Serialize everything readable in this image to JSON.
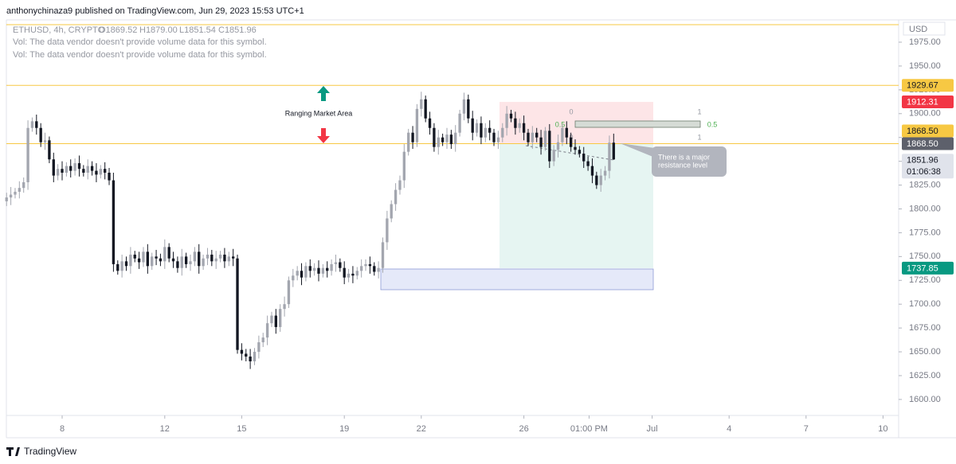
{
  "header": {
    "published": "anthonychinaza9 published on TradingView.com, Jun 29, 2023 15:53 UTC+1"
  },
  "footer": {
    "brand": "TradingView"
  },
  "chart_data": {
    "type": "candlestick",
    "symbol": "ETHUSD, 4h, CRYPTO",
    "ohlc_legend": [
      "O1869.52",
      "H1879.00",
      "L1851.54",
      "C1851.96"
    ],
    "notes": [
      "Vol: The data vendor doesn't provide volume data for this symbol.",
      "Vol: The data vendor doesn't provide volume data for this symbol."
    ],
    "currency": "USD",
    "countdown": "01:06:38",
    "up_color": "#a3a6af",
    "down_color": "#131722",
    "grid": false,
    "xlim": [
      5.826,
      40.609
    ],
    "ylim": [
      1583.2,
      1998.4
    ],
    "xticks": [
      8,
      12,
      15,
      19,
      22,
      26,
      {
        "value": 28.5417,
        "label": "01:00 PM"
      },
      {
        "value": 31,
        "label": "Jul"
      },
      {
        "value": 34,
        "label": "4"
      },
      {
        "value": 37,
        "label": "7"
      },
      {
        "value": 40,
        "label": "10"
      }
    ],
    "yticks": [
      {
        "value": 1975,
        "label": "1975.00"
      },
      {
        "value": 1950,
        "label": "1950.00"
      },
      {
        "value": 1925,
        "label": "1925.00"
      },
      {
        "value": 1900,
        "label": "1900.00"
      },
      {
        "value": 1875,
        "label": "1875.00"
      },
      {
        "value": 1850,
        "label": "1850.00"
      },
      {
        "value": 1825,
        "label": "1825.00"
      },
      {
        "value": 1800,
        "label": "1800.00"
      },
      {
        "value": 1775,
        "label": "1775.00"
      },
      {
        "value": 1750,
        "label": "1750.00"
      },
      {
        "value": 1725,
        "label": "1725.00"
      },
      {
        "value": 1700,
        "label": "1700.00"
      },
      {
        "value": 1675,
        "label": "1675.00"
      },
      {
        "value": 1650,
        "label": "1650.00"
      },
      {
        "value": 1625,
        "label": "1625.00"
      },
      {
        "value": 1600,
        "label": "1600.00"
      }
    ],
    "price_tags": [
      {
        "value": 1929.67,
        "label": "1929.67",
        "color": "#f7c843",
        "text_color": "#131722"
      },
      {
        "value": 1912.31,
        "label": "1912.31",
        "color": "#f23645",
        "text_color": "#ffffff"
      },
      {
        "value": 1868.5,
        "label": "1868.50",
        "color": "#f7c843",
        "text_color": "#131722"
      },
      {
        "value": 1868.5,
        "label": "1868.50",
        "color": "#5d606b",
        "text_color": "#ffffff"
      },
      {
        "value": 1851.96,
        "label": "1851.96",
        "color": "#e0e3eb",
        "text_color": "#131722"
      },
      {
        "value": 1737.85,
        "label": "1737.85",
        "color": "#089981",
        "text_color": "#ffffff"
      }
    ],
    "annotations": [
      "Ranging Market Area",
      "There is a major",
      "resistance level",
      "0",
      "0.5",
      "0",
      "1",
      "0.5",
      "1"
    ],
    "x": [
      5.833,
      6,
      6.167,
      6.333,
      6.5,
      6.667,
      6.833,
      7,
      7.167,
      7.333,
      7.5,
      7.667,
      7.833,
      8,
      8.167,
      8.333,
      8.5,
      8.667,
      8.833,
      9,
      9.167,
      9.333,
      9.5,
      9.667,
      9.833,
      10,
      10.167,
      10.333,
      10.5,
      10.667,
      10.833,
      11,
      11.167,
      11.333,
      11.5,
      11.667,
      11.833,
      12,
      12.167,
      12.333,
      12.5,
      12.667,
      12.833,
      13,
      13.167,
      13.333,
      13.5,
      13.667,
      13.833,
      14,
      14.167,
      14.333,
      14.5,
      14.667,
      14.833,
      15,
      15.167,
      15.333,
      15.5,
      15.667,
      15.833,
      16,
      16.167,
      16.333,
      16.5,
      16.667,
      16.833,
      17,
      17.167,
      17.333,
      17.5,
      17.667,
      17.833,
      18,
      18.167,
      18.333,
      18.5,
      18.667,
      18.833,
      19,
      19.167,
      19.333,
      19.5,
      19.667,
      19.833,
      20,
      20.167,
      20.333,
      20.5,
      20.667,
      20.833,
      21,
      21.167,
      21.333,
      21.5,
      21.667,
      21.833,
      22,
      22.167,
      22.333,
      22.5,
      22.667,
      22.833,
      23,
      23.167,
      23.333,
      23.5,
      23.667,
      23.833,
      24,
      24.167,
      24.333,
      24.5,
      24.667,
      24.833,
      25,
      25.167,
      25.333,
      25.5,
      25.667,
      25.833,
      26,
      26.167,
      26.333,
      26.5,
      26.667,
      26.833,
      27,
      27.167,
      27.333,
      27.5,
      27.667,
      27.833,
      28,
      28.167,
      28.333,
      28.5,
      28.667,
      28.833,
      29,
      29.167,
      29.333,
      29.5
    ],
    "open": [
      1808,
      1812,
      1815,
      1818,
      1822,
      1828,
      1885,
      1892,
      1885,
      1870,
      1872,
      1852,
      1835,
      1842,
      1838,
      1845,
      1840,
      1848,
      1842,
      1838,
      1845,
      1840,
      1836,
      1842,
      1838,
      1830,
      1742,
      1735,
      1745,
      1740,
      1752,
      1748,
      1744,
      1755,
      1740,
      1750,
      1748,
      1745,
      1760,
      1748,
      1745,
      1738,
      1750,
      1742,
      1745,
      1755,
      1740,
      1748,
      1752,
      1745,
      1748,
      1752,
      1745,
      1750,
      1748,
      1652,
      1648,
      1645,
      1640,
      1650,
      1660,
      1665,
      1680,
      1688,
      1676,
      1695,
      1700,
      1725,
      1730,
      1735,
      1728,
      1740,
      1735,
      1738,
      1732,
      1738,
      1735,
      1742,
      1744,
      1738,
      1728,
      1732,
      1730,
      1735,
      1740,
      1742,
      1740,
      1734,
      1738,
      1765,
      1790,
      1805,
      1820,
      1830,
      1860,
      1880,
      1870,
      1905,
      1915,
      1895,
      1885,
      1865,
      1875,
      1870,
      1878,
      1868,
      1880,
      1900,
      1915,
      1895,
      1880,
      1890,
      1875,
      1885,
      1880,
      1870,
      1875,
      1885,
      1900,
      1895,
      1885,
      1890,
      1880,
      1870,
      1880,
      1875,
      1865,
      1882,
      1850,
      1862,
      1870,
      1885,
      1875,
      1865,
      1862,
      1858,
      1850,
      1845,
      1835,
      1825,
      1835,
      1840,
      1869.52
    ],
    "high": [
      1817,
      1823,
      1822,
      1829,
      1833,
      1893,
      1896,
      1899,
      1890,
      1880,
      1876,
      1859,
      1847,
      1850,
      1849,
      1852,
      1853,
      1856,
      1846,
      1852,
      1850,
      1848,
      1846,
      1849,
      1843,
      1838,
      1746,
      1752,
      1750,
      1760,
      1756,
      1755,
      1760,
      1763,
      1754,
      1757,
      1753,
      1768,
      1764,
      1755,
      1750,
      1758,
      1754,
      1752,
      1760,
      1763,
      1752,
      1759,
      1757,
      1756,
      1756,
      1759,
      1755,
      1758,
      1752,
      1659,
      1653,
      1653,
      1654,
      1667,
      1670,
      1688,
      1692,
      1695,
      1700,
      1708,
      1729,
      1737,
      1740,
      1743,
      1744,
      1747,
      1743,
      1746,
      1742,
      1745,
      1747,
      1752,
      1748,
      1745,
      1737,
      1740,
      1739,
      1747,
      1747,
      1750,
      1744,
      1745,
      1770,
      1798,
      1809,
      1827,
      1835,
      1868,
      1884,
      1887,
      1910,
      1923,
      1919,
      1902,
      1890,
      1883,
      1879,
      1885,
      1883,
      1888,
      1904,
      1922,
      1920,
      1903,
      1894,
      1897,
      1890,
      1893,
      1884,
      1882,
      1890,
      1908,
      1904,
      1902,
      1895,
      1898,
      1884,
      1887,
      1885,
      1883,
      1886,
      1889,
      1867,
      1878,
      1889,
      1892,
      1880,
      1873,
      1866,
      1865,
      1855,
      1853,
      1839,
      1842,
      1845,
      1877,
      1879
    ],
    "low": [
      1803,
      1804,
      1811,
      1811,
      1817,
      1820,
      1881,
      1878,
      1865,
      1862,
      1848,
      1828,
      1830,
      1830,
      1834,
      1833,
      1835,
      1834,
      1834,
      1831,
      1835,
      1828,
      1832,
      1831,
      1825,
      1734,
      1731,
      1728,
      1735,
      1732,
      1744,
      1737,
      1739,
      1732,
      1736,
      1741,
      1740,
      1737,
      1744,
      1738,
      1733,
      1730,
      1738,
      1735,
      1740,
      1732,
      1736,
      1741,
      1740,
      1737,
      1744,
      1738,
      1740,
      1740,
      1648,
      1641,
      1640,
      1632,
      1636,
      1643,
      1655,
      1657,
      1676,
      1669,
      1671,
      1687,
      1696,
      1718,
      1725,
      1720,
      1724,
      1728,
      1730,
      1724,
      1728,
      1728,
      1730,
      1734,
      1734,
      1721,
      1723,
      1722,
      1726,
      1728,
      1735,
      1732,
      1730,
      1727,
      1733,
      1757,
      1786,
      1798,
      1815,
      1822,
      1856,
      1863,
      1865,
      1897,
      1891,
      1878,
      1860,
      1857,
      1866,
      1863,
      1863,
      1860,
      1876,
      1893,
      1890,
      1872,
      1876,
      1868,
      1870,
      1872,
      1866,
      1863,
      1870,
      1877,
      1891,
      1878,
      1880,
      1872,
      1866,
      1863,
      1870,
      1857,
      1861,
      1843,
      1845,
      1854,
      1866,
      1868,
      1860,
      1857,
      1854,
      1843,
      1840,
      1827,
      1821,
      1818,
      1830,
      1832,
      1851.54
    ],
    "close": [
      1812,
      1815,
      1818,
      1822,
      1828,
      1885,
      1892,
      1885,
      1870,
      1872,
      1852,
      1835,
      1842,
      1838,
      1845,
      1840,
      1848,
      1842,
      1838,
      1845,
      1840,
      1836,
      1842,
      1838,
      1830,
      1742,
      1735,
      1745,
      1740,
      1752,
      1748,
      1744,
      1755,
      1740,
      1750,
      1748,
      1745,
      1760,
      1748,
      1745,
      1738,
      1750,
      1742,
      1745,
      1755,
      1740,
      1748,
      1752,
      1745,
      1748,
      1752,
      1745,
      1750,
      1748,
      1652,
      1648,
      1645,
      1640,
      1650,
      1660,
      1665,
      1680,
      1688,
      1676,
      1695,
      1700,
      1725,
      1730,
      1735,
      1728,
      1740,
      1735,
      1738,
      1732,
      1738,
      1735,
      1742,
      1744,
      1738,
      1728,
      1732,
      1730,
      1735,
      1740,
      1742,
      1740,
      1734,
      1738,
      1765,
      1790,
      1805,
      1820,
      1830,
      1860,
      1880,
      1870,
      1905,
      1915,
      1895,
      1885,
      1865,
      1875,
      1870,
      1878,
      1868,
      1880,
      1900,
      1915,
      1895,
      1880,
      1890,
      1875,
      1885,
      1880,
      1870,
      1875,
      1885,
      1900,
      1895,
      1885,
      1890,
      1880,
      1870,
      1880,
      1875,
      1865,
      1882,
      1850,
      1862,
      1870,
      1885,
      1875,
      1865,
      1862,
      1858,
      1850,
      1845,
      1835,
      1825,
      1835,
      1840,
      1869.52,
      1851.96
    ]
  }
}
